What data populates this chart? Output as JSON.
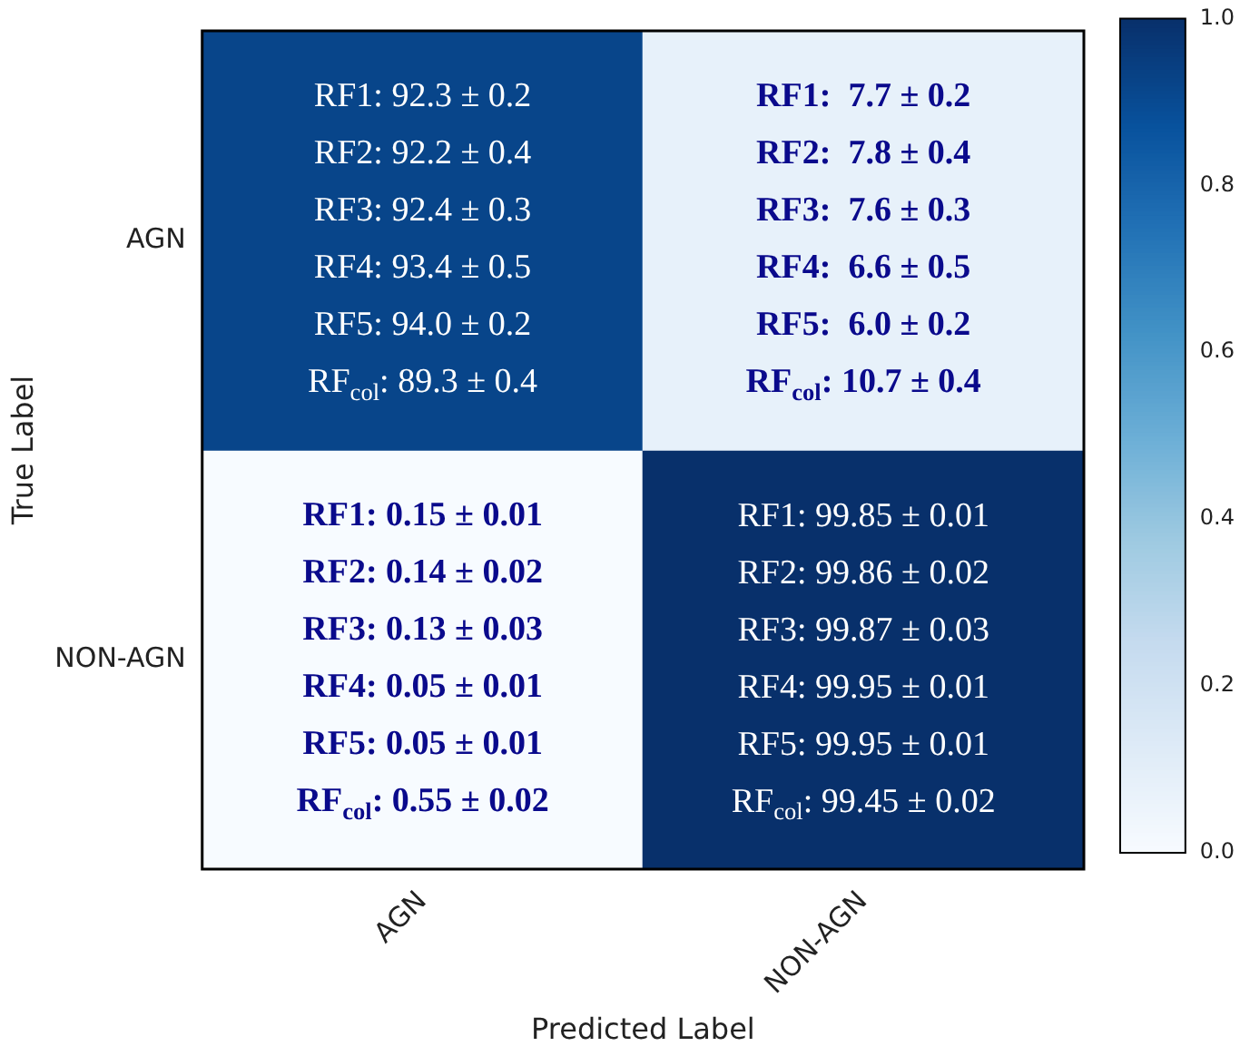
{
  "chart_data": {
    "type": "heatmap",
    "xlabel": "Predicted Label",
    "ylabel": "True Label",
    "categories": [
      "AGN",
      "NON-AGN"
    ],
    "y_categories": [
      "AGN",
      "NON-AGN"
    ],
    "cells": [
      [
        0.92,
        0.08
      ],
      [
        0.0,
        1.0
      ]
    ],
    "cell_labels": [
      [
        "RF1: 92.3 ± 0.2\nRF2: 92.2 ± 0.4\nRF3: 92.4 ± 0.3\nRF4: 93.4 ± 0.5\nRF5: 94.0 ± 0.2\nRF$_{col}$: 89.3 ± 0.4",
        "RF1:  7.7 ± 0.2\nRF2:  7.8 ± 0.4\nRF3:  7.6 ± 0.3\nRF4:  6.6 ± 0.5\nRF5:  6.0 ± 0.2\nRF$_{col}$: 10.7 ± 0.4"
      ],
      [
        "RF1: 0.15 ± 0.01\nRF2: 0.14 ± 0.02\nRF3: 0.13 ± 0.03\nRF4: 0.05 ± 0.01\nRF5: 0.05 ± 0.01\nRF$_{col}$: 0.55 ± 0.02",
        "RF1: 99.85 ± 0.01\nRF2: 99.86 ± 0.02\nRF3: 99.87 ± 0.03\nRF4: 99.95 ± 0.01\nRF5: 99.95 ± 0.01\nRF$_{col}$: 99.45 ± 0.02"
      ]
    ],
    "clim": [
      0,
      1
    ],
    "cticks": [
      {
        "value": 0,
        "label": "0.0"
      },
      {
        "value": 0.2,
        "label": "0.2"
      },
      {
        "value": 0.4,
        "label": "0.4"
      },
      {
        "value": 0.6,
        "label": "0.6"
      },
      {
        "value": 0.8,
        "label": "0.8"
      },
      {
        "value": 1,
        "label": "1.0"
      }
    ]
  }
}
